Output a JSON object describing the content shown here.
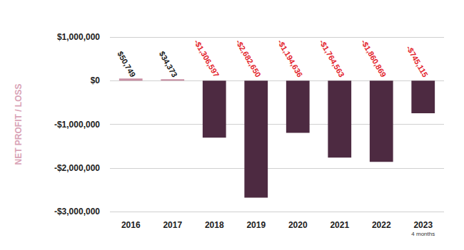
{
  "chart_data": {
    "type": "bar",
    "y_label": "NET PROFIT / LOSS",
    "categories": [
      "2016",
      "2017",
      "2018",
      "2019",
      "2020",
      "2021",
      "2022",
      "2023"
    ],
    "annotations": [
      {
        "category": "2023",
        "text": "4 months"
      }
    ],
    "values": [
      50749,
      34373,
      -1306597,
      -2682650,
      -1194636,
      -1764563,
      -1860869,
      -745115
    ],
    "value_labels": [
      "$50,749",
      "$34,373",
      "-$1,306,597",
      "-$2,682,650",
      "-$1,194,636",
      "-$1,764,563",
      "-$1,860,869",
      "-$745,115"
    ],
    "colors": [
      "#c98ea3",
      "#c98ea3",
      "#4d2a41",
      "#4d2a41",
      "#4d2a41",
      "#4d2a41",
      "#4d2a41",
      "#4d2a41"
    ],
    "data_labels": true,
    "ylim": [
      -3000000,
      1000000
    ],
    "yticks": [
      {
        "value": -3000000,
        "label": "-$3,000,000"
      },
      {
        "value": -2000000,
        "label": "-$2,000,000"
      },
      {
        "value": -1000000,
        "label": "-$1,000,000"
      },
      {
        "value": 0,
        "label": "$0"
      },
      {
        "value": 1000000,
        "label": "$1,000,000"
      }
    ],
    "grid": true
  }
}
